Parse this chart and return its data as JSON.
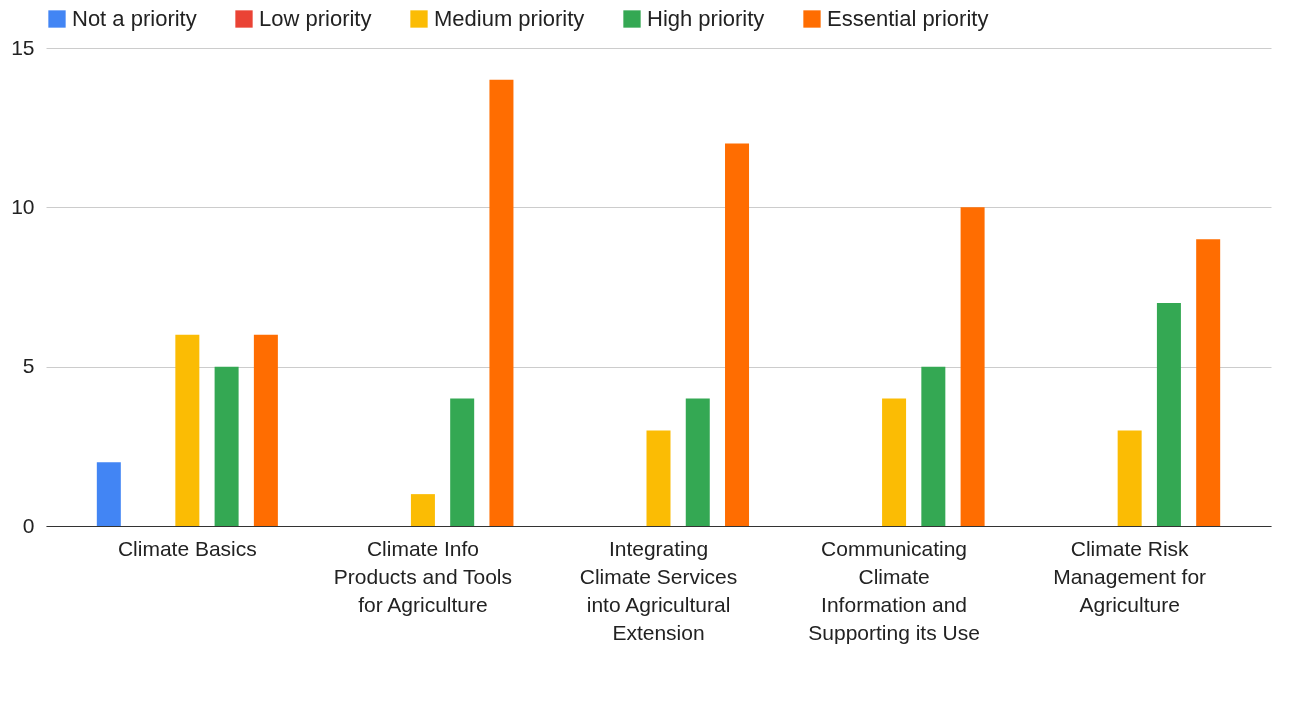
{
  "chart_data": {
    "type": "bar",
    "categories": [
      "Climate Basics",
      "Climate Info Products and Tools for Agriculture",
      "Integrating Climate Services into Agricultural Extension",
      "Communicating Climate Information and Supporting its Use",
      "Climate Risk Management for Agriculture"
    ],
    "series": [
      {
        "name": "Not a priority",
        "color": "#4285f4",
        "values": [
          2,
          0,
          0,
          0,
          0
        ]
      },
      {
        "name": "Low priority",
        "color": "#ea4335",
        "values": [
          0,
          0,
          0,
          0,
          0
        ]
      },
      {
        "name": "Medium priority",
        "color": "#fbbc04",
        "values": [
          6,
          1,
          3,
          4,
          3
        ]
      },
      {
        "name": "High priority",
        "color": "#34a853",
        "values": [
          5,
          4,
          4,
          5,
          7
        ]
      },
      {
        "name": "Essential priority",
        "color": "#ff6d01",
        "values": [
          6,
          14,
          12,
          10,
          9
        ]
      }
    ],
    "ylim": [
      0,
      15
    ],
    "yticks": [
      0,
      5,
      10,
      15
    ],
    "grid": "y",
    "legend": "top left"
  }
}
